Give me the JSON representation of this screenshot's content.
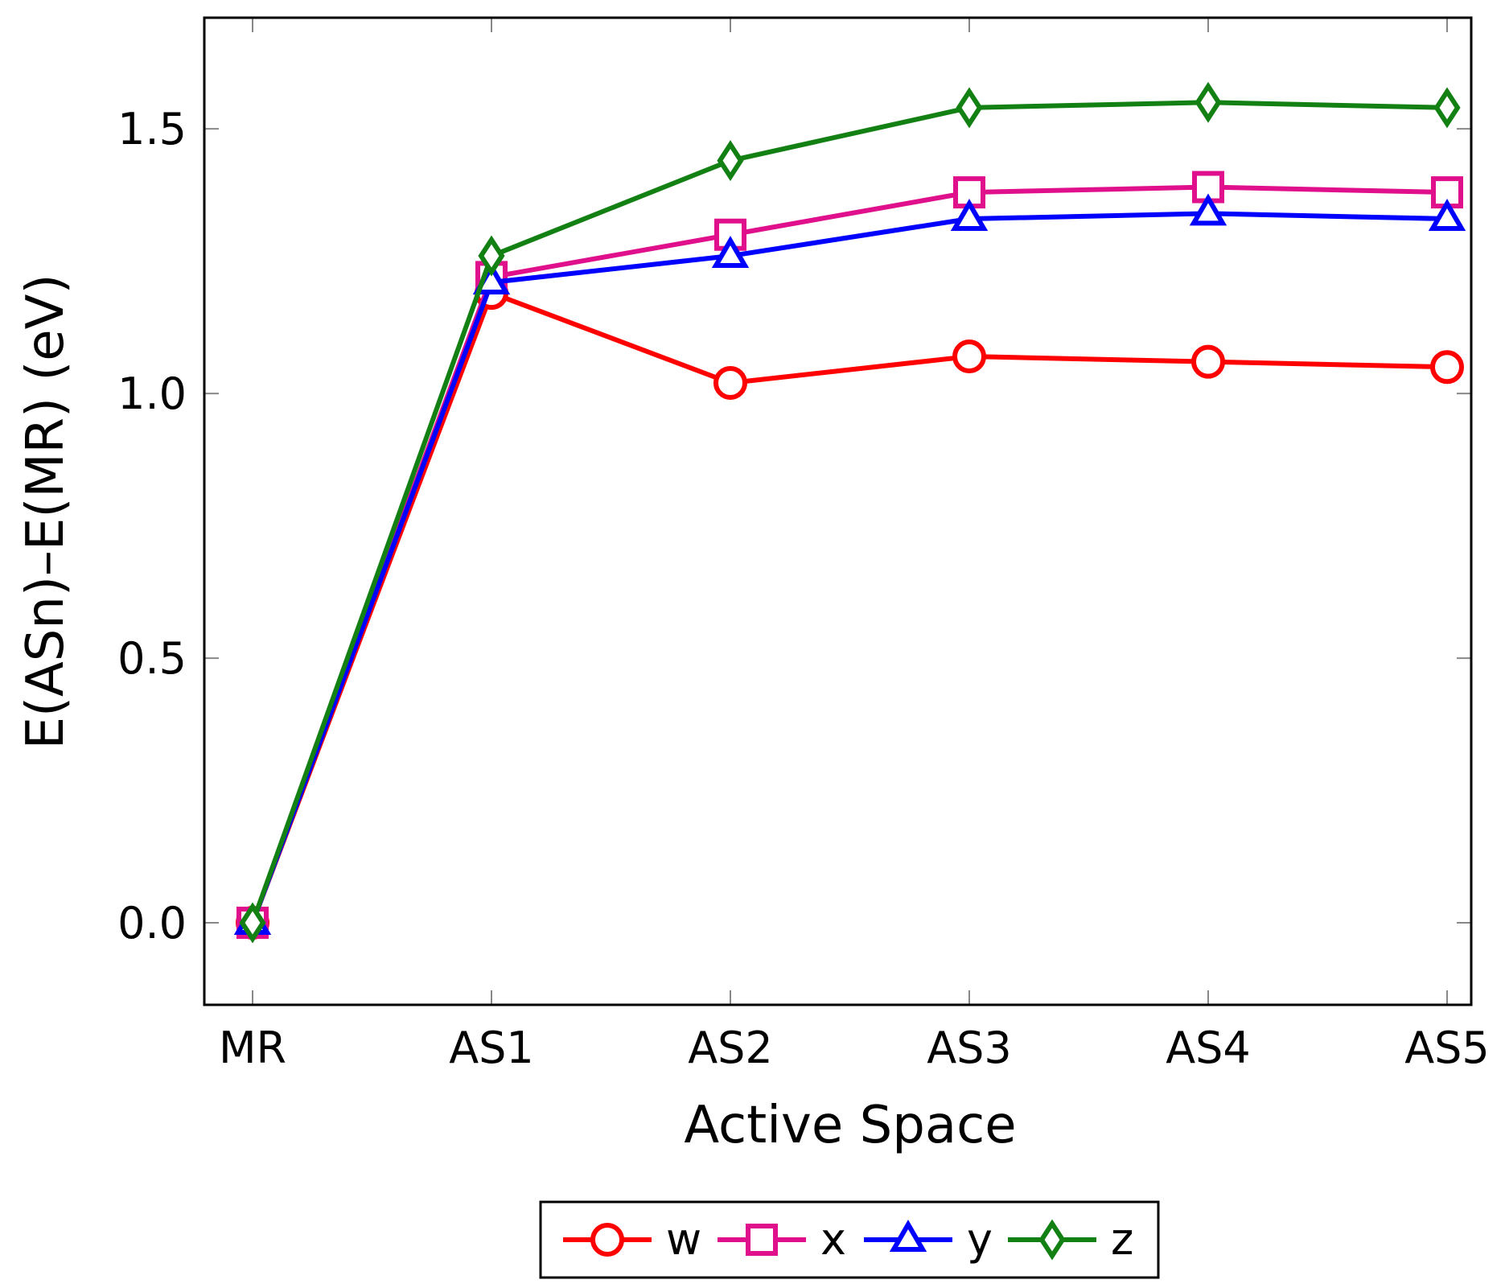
{
  "chart_data": {
    "type": "line",
    "xlabel": "Active Space",
    "ylabel": "E(ASn)–E(MR) (eV)",
    "categories": [
      "MR",
      "AS1",
      "AS2",
      "AS3",
      "AS4",
      "AS5"
    ],
    "ylim": [
      -0.155,
      1.71
    ],
    "yticks": [
      0.0,
      0.5,
      1.0,
      1.5
    ],
    "ytick_labels": [
      "0.0",
      "0.5",
      "1.0",
      "1.5"
    ],
    "grid": false,
    "legend_position": "bottom-center, below plot",
    "series": [
      {
        "name": "w",
        "color": "#ff0000",
        "marker": "circle",
        "values": [
          0.0,
          1.19,
          1.02,
          1.07,
          1.06,
          1.05
        ]
      },
      {
        "name": "x",
        "color": "#e0108c",
        "marker": "square",
        "values": [
          0.0,
          1.22,
          1.3,
          1.38,
          1.39,
          1.38
        ]
      },
      {
        "name": "y",
        "color": "#0000ff",
        "marker": "triangle",
        "values": [
          0.0,
          1.21,
          1.26,
          1.33,
          1.34,
          1.33
        ]
      },
      {
        "name": "z",
        "color": "#138013",
        "marker": "diamond",
        "values": [
          0.0,
          1.26,
          1.44,
          1.54,
          1.55,
          1.54
        ]
      }
    ]
  }
}
